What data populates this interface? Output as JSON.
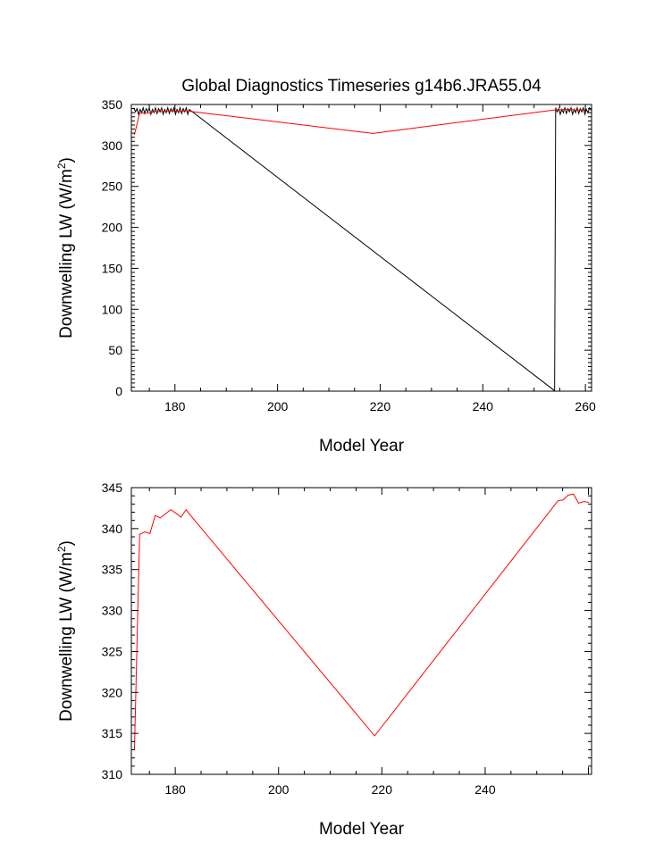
{
  "chart_data": [
    {
      "type": "line",
      "title": "Global Diagnostics Timeseries g14b6.JRA55.04",
      "xlabel": "Model Year",
      "ylabel": "Downwelling LW (W/m",
      "ylabel_sup": "2",
      "ylabel_end": ")",
      "xlim": [
        171.5,
        261.2
      ],
      "ylim": [
        0,
        350
      ],
      "xticks": [
        "180",
        "200",
        "220",
        "240",
        "260"
      ],
      "yticks": [
        "0",
        "50",
        "100",
        "150",
        "200",
        "250",
        "300",
        "350"
      ],
      "grid": false,
      "series": [
        {
          "color": "#000000",
          "x": [
            172.0,
            172.3,
            172.6,
            172.9,
            173.2,
            173.5,
            173.8,
            174.1,
            174.4,
            174.7,
            175.0,
            175.3,
            175.6,
            175.9,
            176.2,
            176.5,
            176.8,
            177.1,
            177.4,
            177.7,
            178.0,
            178.3,
            178.6,
            178.9,
            179.2,
            179.5,
            179.8,
            180.1,
            180.4,
            180.7,
            181.0,
            181.3,
            181.6,
            181.9,
            182.2,
            182.5,
            182.8,
            183.0,
            253.9,
            254.0,
            254.2,
            254.5,
            254.8,
            255.1,
            255.4,
            255.7,
            256.0,
            256.3,
            256.6,
            256.9,
            257.2,
            257.5,
            257.8,
            258.1,
            258.4,
            258.7,
            259.0,
            259.3,
            259.6,
            259.9,
            260.2,
            260.5,
            260.8,
            261.1
          ],
          "y": [
            346,
            341,
            345,
            338,
            344,
            340,
            346,
            339,
            345,
            341,
            346,
            338,
            344,
            340,
            346,
            339,
            345,
            341,
            346,
            338,
            344,
            340,
            346,
            339,
            345,
            341,
            346,
            338,
            344,
            340,
            346,
            339,
            345,
            341,
            346,
            338,
            344,
            343,
            1,
            1,
            346,
            341,
            345,
            338,
            344,
            340,
            346,
            339,
            345,
            341,
            346,
            338,
            344,
            340,
            346,
            339,
            345,
            341,
            346,
            338,
            344,
            340,
            346,
            343
          ]
        },
        {
          "color": "#ff0000",
          "x": [
            172.1,
            173.1,
            174.1,
            175.1,
            176.1,
            177.1,
            178.1,
            179.1,
            180.1,
            181.1,
            182.1,
            183.1,
            218.6,
            254.1,
            255.1,
            256.1,
            257.1,
            258.1,
            259.1,
            260.1
          ],
          "y": [
            313,
            339.3,
            339.6,
            339.4,
            341.6,
            341.3,
            341.8,
            342.3,
            341.9,
            341.4,
            342.3,
            341.5,
            314.7,
            343.4,
            343.5,
            344.1,
            344.2,
            343.1,
            343.3,
            343.2
          ]
        }
      ]
    },
    {
      "type": "line",
      "title": "",
      "xlabel": "Model Year",
      "ylabel": "Downwelling LW (W/m",
      "ylabel_sup": "2",
      "ylabel_end": ")",
      "xlim": [
        171.5,
        260.6
      ],
      "ylim": [
        310,
        345
      ],
      "xticks": [
        "180",
        "200",
        "220",
        "240"
      ],
      "yticks": [
        "310",
        "315",
        "320",
        "325",
        "330",
        "335",
        "340",
        "345"
      ],
      "grid": false,
      "series": [
        {
          "color": "#ff0000",
          "x": [
            172.1,
            173.1,
            174.1,
            175.1,
            176.1,
            177.1,
            178.1,
            179.1,
            180.1,
            181.1,
            182.1,
            183.1,
            218.6,
            254.1,
            255.1,
            256.1,
            257.1,
            258.1,
            259.1,
            260.1
          ],
          "y": [
            313,
            339.3,
            339.6,
            339.4,
            341.6,
            341.3,
            341.8,
            342.3,
            341.9,
            341.4,
            342.3,
            341.5,
            314.7,
            343.4,
            343.5,
            344.1,
            344.2,
            343.1,
            343.3,
            343.2
          ]
        }
      ]
    }
  ]
}
